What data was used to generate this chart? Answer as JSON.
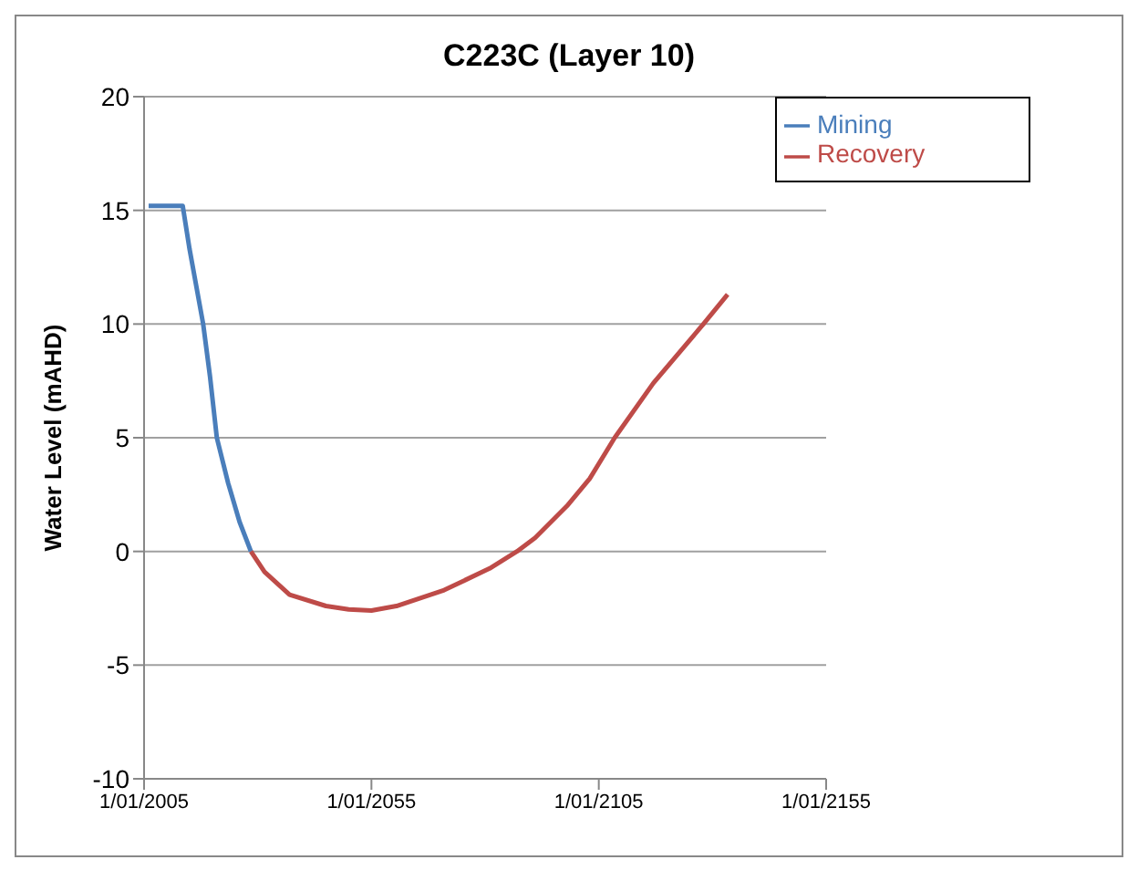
{
  "chart_data": {
    "type": "line",
    "title": "C223C (Layer 10)",
    "ylabel": "Water Level (mAHD)",
    "xlim": [
      "2005-01-01",
      "2155-01-01"
    ],
    "xticks": [
      {
        "value": "2005-01-01",
        "label": "1/01/2005"
      },
      {
        "value": "2055-01-01",
        "label": "1/01/2055"
      },
      {
        "value": "2105-01-01",
        "label": "1/01/2105"
      },
      {
        "value": "2155-01-01",
        "label": "1/01/2155"
      }
    ],
    "ylim": [
      -10,
      20
    ],
    "yticks": [
      -10,
      -5,
      0,
      5,
      10,
      15,
      20
    ],
    "grid": "y",
    "legend": "top right",
    "marker": "none",
    "line_style": "solid",
    "series": [
      {
        "name": "Mining",
        "color": "#4a7ebb",
        "x": [
          "2006-01",
          "2013-07",
          "2015-01",
          "2018-01",
          "2019-07",
          "2021-01",
          "2023-07",
          "2026-01",
          "2028-07"
        ],
        "values": [
          15.2,
          15.2,
          13.3,
          10,
          7.7,
          5,
          3,
          1.3,
          0
        ]
      },
      {
        "name": "Recovery",
        "color": "#be4b48",
        "x": [
          "2028-07",
          "2031-07",
          "2037-01",
          "2045-01",
          "2050-01",
          "2055-01",
          "2060-07",
          "2071-01",
          "2081-01",
          "2087-01",
          "2091-01",
          "2098-01",
          "2103-01",
          "2108-07",
          "2117-01",
          "2128-01",
          "2133-05"
        ],
        "values": [
          0,
          -0.9,
          -1.9,
          -2.4,
          -2.55,
          -2.6,
          -2.4,
          -1.7,
          -0.75,
          0,
          0.6,
          2,
          3.2,
          5,
          7.4,
          10,
          11.3
        ]
      }
    ]
  }
}
